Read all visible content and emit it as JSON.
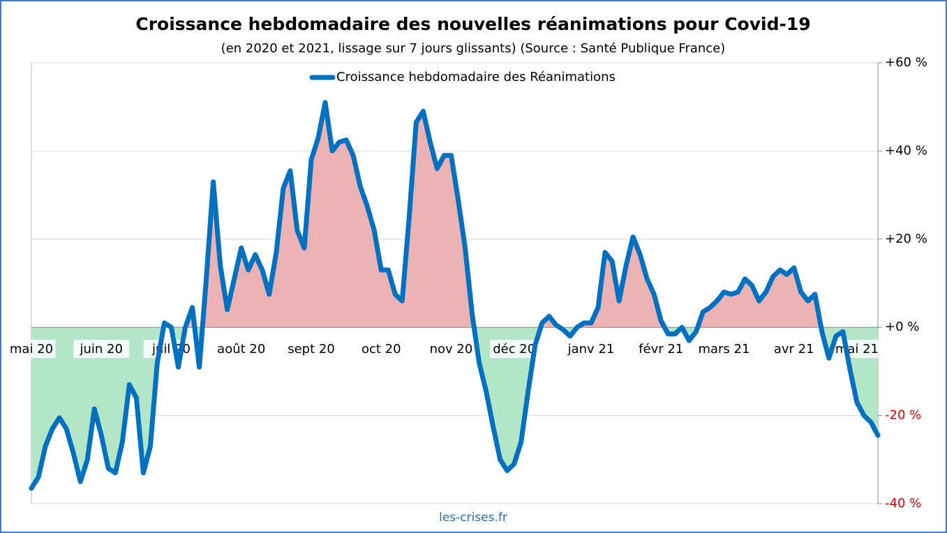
{
  "chart_data": {
    "type": "line",
    "title": "Croissance hebdomadaire des nouvelles réanimations pour Covid-19",
    "subtitle": "(en 2020 et 2021, lissage sur 7 jours glissants) (Source : Santé Publique France)",
    "source": "les-crises.fr",
    "categories": [
      "mai 20",
      null,
      null,
      null,
      null,
      null,
      null,
      null,
      null,
      null,
      "juin 20",
      null,
      null,
      null,
      null,
      null,
      null,
      null,
      null,
      null,
      "juil 20",
      null,
      null,
      null,
      null,
      null,
      null,
      null,
      null,
      null,
      "août 20",
      null,
      null,
      null,
      null,
      null,
      null,
      null,
      null,
      null,
      "sept 20",
      null,
      null,
      null,
      null,
      null,
      null,
      null,
      null,
      null,
      "oct 20",
      null,
      null,
      null,
      null,
      null,
      null,
      null,
      null,
      null,
      "nov 20",
      null,
      null,
      null,
      null,
      null,
      null,
      null,
      null,
      "déc 20",
      null,
      null,
      null,
      null,
      null,
      null,
      null,
      null,
      null,
      null,
      "janv 21",
      null,
      null,
      null,
      null,
      null,
      null,
      null,
      null,
      null,
      "févr 21",
      null,
      null,
      null,
      null,
      null,
      null,
      null,
      null,
      "mars 21",
      null,
      null,
      null,
      null,
      null,
      null,
      null,
      null,
      null,
      "avr 21",
      null,
      null,
      null,
      null,
      null,
      null,
      null,
      null,
      "mai 21",
      null,
      null,
      null
    ],
    "series": [
      {
        "name": "Croissance hebdomadaire des Réanimations",
        "color": "#0070c0",
        "values": [
          -36.5,
          -34,
          -27,
          -23,
          -20.5,
          -23,
          -28.5,
          -35,
          -30,
          -18.5,
          -24.5,
          -32,
          -33,
          -26,
          -13,
          -16,
          -33,
          -27,
          -8,
          1,
          0,
          -9,
          0,
          4.5,
          -9,
          11,
          33,
          14,
          4,
          11,
          18,
          13,
          16.5,
          13,
          7.5,
          17,
          31.5,
          35.5,
          22,
          18,
          38,
          43,
          51,
          40,
          42,
          42.5,
          39,
          32,
          27.5,
          22,
          13,
          13,
          7.5,
          6,
          25,
          46.5,
          49,
          42,
          36,
          39,
          39,
          29,
          18,
          3,
          -8,
          -14.5,
          -22.5,
          -30,
          -32.5,
          -31,
          -26,
          -14.5,
          -4,
          1,
          2.5,
          0.5,
          -0.5,
          -2,
          0,
          1,
          1,
          4.5,
          17,
          15,
          6,
          14,
          20.5,
          16.5,
          11,
          7.5,
          1.5,
          -1.5,
          -1.5,
          0,
          -3,
          -1,
          3.5,
          4.5,
          6,
          8,
          7.5,
          8,
          11,
          9.5,
          6,
          8,
          11.5,
          13,
          12,
          13.5,
          8,
          6,
          7.5,
          -1,
          -7,
          -2,
          -1,
          -9.5,
          -17,
          -20,
          -21.5,
          -24.5
        ]
      }
    ],
    "positive_fill": "#ebb3b3",
    "negative_fill": "#b3e6c6",
    "negative_tick_color": "#e00000",
    "ylim": [
      -40,
      60
    ],
    "yticks": [
      {
        "value": -40,
        "label": "-40 %"
      },
      {
        "value": -20,
        "label": "-20 %"
      },
      {
        "value": 0,
        "label": "+0 %"
      },
      {
        "value": 20,
        "label": "+20 %"
      },
      {
        "value": 40,
        "label": "+40 %"
      },
      {
        "value": 60,
        "label": "+60 %"
      }
    ],
    "grid": true,
    "legend": "top"
  }
}
